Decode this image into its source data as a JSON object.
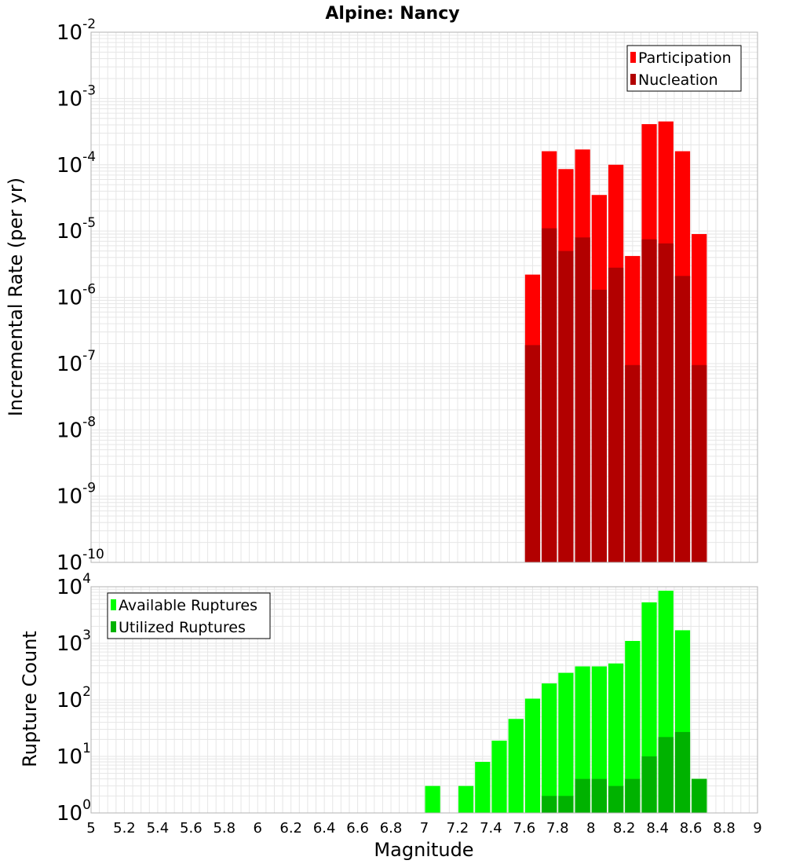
{
  "chart_data": [
    {
      "type": "bar",
      "title": "Alpine: Nancy",
      "ylabel": "Incremental Rate (per yr)",
      "xlabel": "",
      "yscale": "log",
      "ylim_exponents": [
        -10,
        -2
      ],
      "xlim": [
        5,
        9
      ],
      "grid": true,
      "legend_position": "top-right",
      "bin_width": 0.1,
      "x": [
        7.65,
        7.75,
        7.85,
        7.95,
        8.05,
        8.15,
        8.25,
        8.35,
        8.45,
        8.55,
        8.65
      ],
      "series": [
        {
          "name": "Participation",
          "color": "#ff0000",
          "values": [
            2.2e-06,
            0.00016,
            8.6e-05,
            0.00017,
            3.5e-05,
            0.0001,
            4.2e-06,
            0.00041,
            0.00045,
            0.00016,
            9e-06
          ]
        },
        {
          "name": "Nucleation",
          "color": "#b20000",
          "values": [
            1.9e-07,
            1.1e-05,
            5e-06,
            8e-06,
            1.3e-06,
            2.8e-06,
            9.5e-08,
            7.5e-06,
            6.5e-06,
            2.1e-06,
            9.5e-08
          ]
        }
      ]
    },
    {
      "type": "bar",
      "title": "",
      "ylabel": "Rupture Count",
      "xlabel": "Magnitude",
      "yscale": "log",
      "ylim_exponents": [
        0,
        4
      ],
      "xlim": [
        5,
        9
      ],
      "grid": true,
      "legend_position": "top-left",
      "bin_width": 0.1,
      "series": [
        {
          "name": "Available Ruptures",
          "color": "#00ff00",
          "x": [
            6.65,
            7.05,
            7.15,
            7.25,
            7.35,
            7.45,
            7.55,
            7.65,
            7.75,
            7.85,
            7.95,
            8.05,
            8.15,
            8.25,
            8.35,
            8.45,
            8.55,
            8.65
          ],
          "values": [
            1,
            3,
            1,
            3,
            8,
            19,
            46,
            105,
            195,
            300,
            390,
            390,
            440,
            1100,
            5300,
            8500,
            1700,
            4
          ]
        },
        {
          "name": "Utilized Ruptures",
          "color": "#00b200",
          "x": [
            7.65,
            7.75,
            7.85,
            7.95,
            8.05,
            8.15,
            8.25,
            8.35,
            8.45,
            8.55,
            8.65
          ],
          "values": [
            1,
            2,
            2,
            4,
            4,
            3,
            4,
            10,
            22,
            27,
            4
          ]
        }
      ],
      "xticks": [
        "5",
        "5.2",
        "5.4",
        "5.6",
        "5.8",
        "6",
        "6.2",
        "6.4",
        "6.6",
        "6.8",
        "7",
        "7.2",
        "7.4",
        "7.6",
        "7.8",
        "8",
        "8.2",
        "8.4",
        "8.6",
        "8.8",
        "9"
      ]
    }
  ]
}
